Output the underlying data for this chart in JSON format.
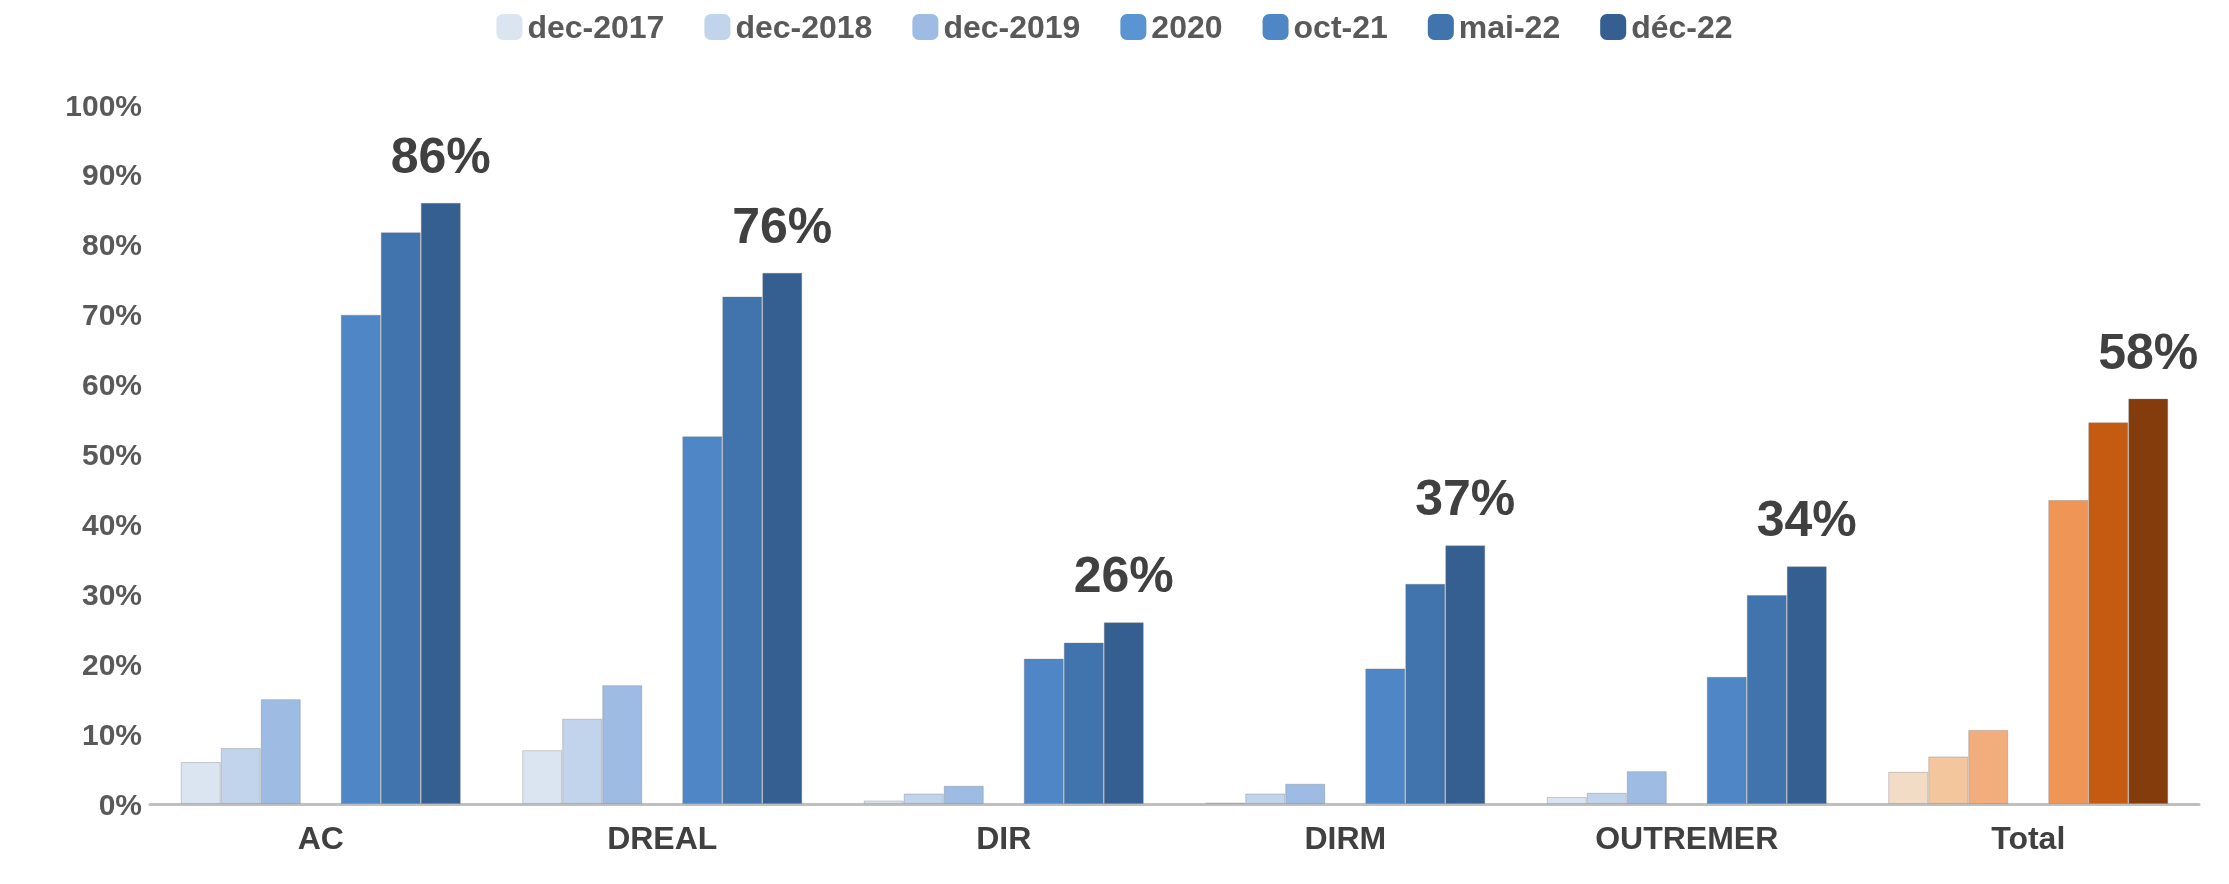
{
  "chart_data": {
    "type": "bar",
    "categories": [
      "AC",
      "DREAL",
      "DIR",
      "DIRM",
      "OUTREMER",
      "Total"
    ],
    "series": [
      {
        "name": "dec-2017",
        "color": "#dbe4f1",
        "values": [
          6,
          7.7,
          0.5,
          0.2,
          1,
          4.6
        ],
        "colors": [
          "#dbe4f1",
          "#dbe4f1",
          "#dbe4f1",
          "#dbe4f1",
          "#dbe4f1",
          "#f3dcc6"
        ]
      },
      {
        "name": "dec-2018",
        "color": "#c2d3ec",
        "values": [
          8,
          12.2,
          1.5,
          1.5,
          1.6,
          6.8
        ],
        "colors": [
          "#c2d3ec",
          "#c2d3ec",
          "#c2d3ec",
          "#c2d3ec",
          "#c2d3ec",
          "#f4c69e"
        ]
      },
      {
        "name": "dec-2019",
        "color": "#9ebbe4",
        "values": [
          15,
          17,
          2.6,
          2.9,
          4.7,
          10.6
        ],
        "colors": [
          "#9ebbe4",
          "#9ebbe4",
          "#9ebbe4",
          "#9ebbe4",
          "#9ebbe4",
          "#f1ad7c"
        ]
      },
      {
        "name": "2020",
        "color": "#5b94d2",
        "values": [
          null,
          null,
          null,
          null,
          null,
          null
        ]
      },
      {
        "name": "oct-21",
        "color": "#4f86c6",
        "values": [
          70,
          52.6,
          20.8,
          19.4,
          18.2,
          43.5
        ],
        "colors": [
          "#4f86c6",
          "#4f86c6",
          "#4f86c6",
          "#4f86c6",
          "#4f86c6",
          "#ef9555"
        ]
      },
      {
        "name": "mai-22",
        "color": "#4173ac",
        "values": [
          81.8,
          72.6,
          23.1,
          31.5,
          29.9,
          54.6
        ],
        "colors": [
          "#4173ac",
          "#4173ac",
          "#4173ac",
          "#4173ac",
          "#4173ac",
          "#c55a11"
        ]
      },
      {
        "name": "déc-22",
        "color": "#345f90",
        "values": [
          86,
          76,
          26,
          37,
          34,
          58
        ],
        "colors": [
          "#345f90",
          "#345f90",
          "#345f90",
          "#345f90",
          "#345f90",
          "#843c0c"
        ],
        "value_labels": [
          "86%",
          "76%",
          "26%",
          "37%",
          "34%",
          "58%"
        ]
      }
    ],
    "ylim": [
      0,
      100
    ],
    "yticks": [
      {
        "value": 0,
        "label": "0%"
      },
      {
        "value": 10,
        "label": "10%"
      },
      {
        "value": 20,
        "label": "20%"
      },
      {
        "value": 30,
        "label": "30%"
      },
      {
        "value": 40,
        "label": "40%"
      },
      {
        "value": 50,
        "label": "50%"
      },
      {
        "value": 60,
        "label": "60%"
      },
      {
        "value": 70,
        "label": "70%"
      },
      {
        "value": 80,
        "label": "80%"
      },
      {
        "value": 90,
        "label": "90%"
      },
      {
        "value": 100,
        "label": "100%"
      }
    ],
    "grid": false,
    "legend": "top"
  }
}
